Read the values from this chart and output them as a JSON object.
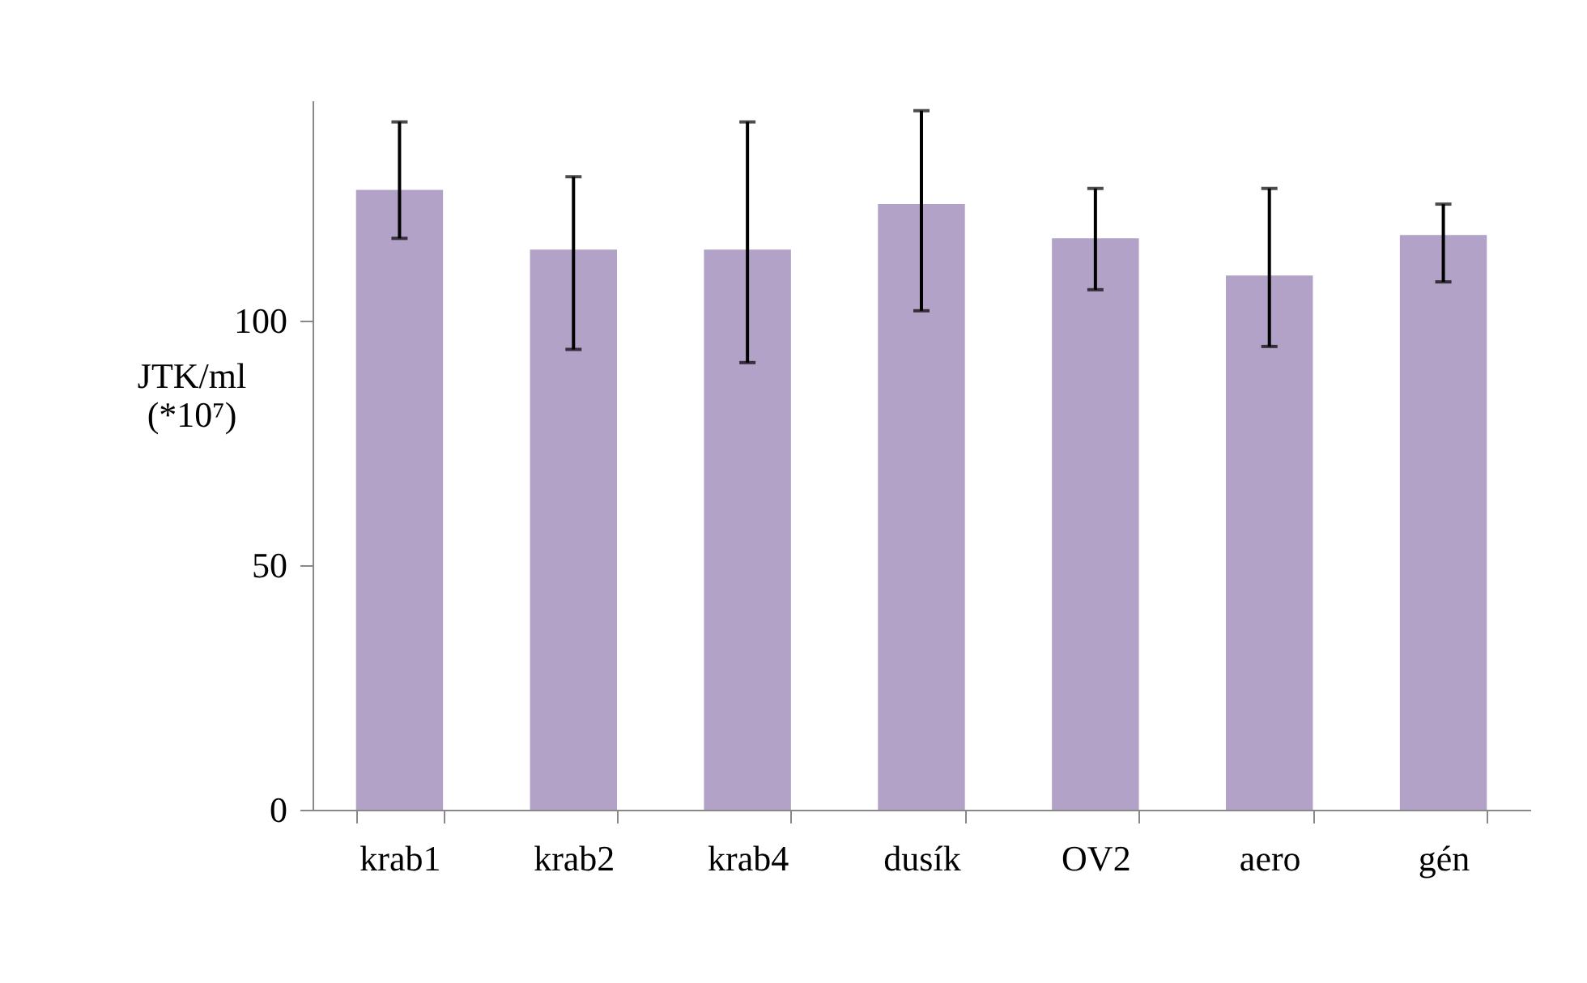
{
  "chart_data": {
    "type": "bar",
    "ylabel": "JTK/ml\n(*10⁷)",
    "categories": [
      "krab1",
      "krab2",
      "krab4",
      "dusík",
      "OV2",
      "aero",
      "gén"
    ],
    "values": [
      126.7,
      114.5,
      114.5,
      123.8,
      116.8,
      109.2,
      117.5
    ],
    "errors": [
      [
        116.8,
        140.6
      ],
      [
        94.1,
        129.4
      ],
      [
        91.4,
        140.6
      ],
      [
        102,
        142.9
      ],
      [
        106.3,
        127
      ],
      [
        94.7,
        127
      ],
      [
        107.9,
        123.8
      ]
    ],
    "color": "#b3a2c7",
    "ylim": [
      0,
      145
    ],
    "yticks": [
      0,
      50,
      100
    ],
    "grid": false
  }
}
